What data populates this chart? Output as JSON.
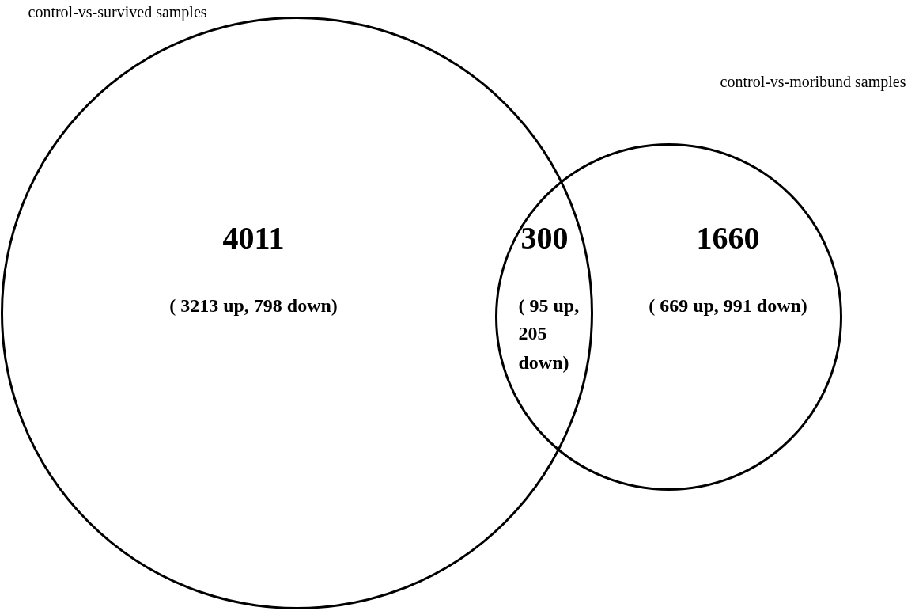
{
  "chart_data": {
    "type": "other",
    "categories": [
      null,
      null,
      null
    ],
    "values": [
      4011,
      300,
      1660
    ],
    "data_labels": true,
    "annotations": [
      "control-vs-survived samples",
      "control-vs-moribund samples",
      "( 3213 up, 798 down)",
      "( 95 up, 205 down)",
      "( 669 up, 991 down)"
    ]
  }
}
